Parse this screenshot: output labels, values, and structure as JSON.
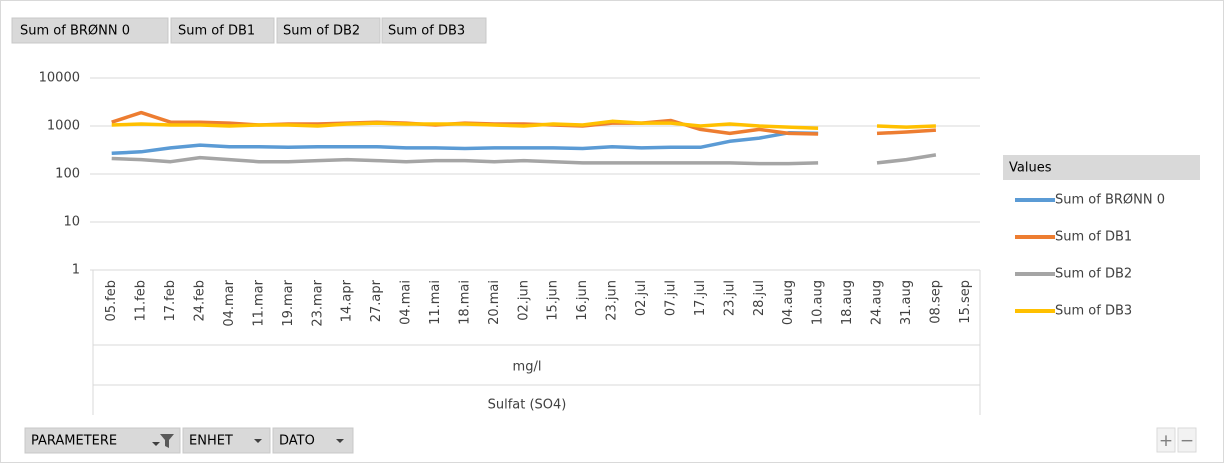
{
  "chart_data": {
    "type": "line",
    "field_buttons": [
      "Sum of BRØNN 0",
      "Sum of DB1",
      "Sum of DB2",
      "Sum of DB3"
    ],
    "axis_field_buttons": [
      "PARAMETERE",
      "ENHET",
      "DATO"
    ],
    "x_group_labels": [
      "mg/l",
      "Sulfat (SO4)"
    ],
    "legend_title": "Values",
    "zoom_buttons": [
      "+",
      "−"
    ],
    "log_scale": true,
    "grid": true,
    "legend": "right",
    "ylim": [
      1,
      10000
    ],
    "yticks": [
      1,
      10,
      100,
      1000,
      10000
    ],
    "categories": [
      "05.feb",
      "11.feb",
      "17.feb",
      "24.feb",
      "04.mar",
      "11.mar",
      "19.mar",
      "23.mar",
      "14.apr",
      "27.apr",
      "04.mai",
      "11.mai",
      "18.mai",
      "20.mai",
      "02.jun",
      "15.jun",
      "16.jun",
      "23.jun",
      "02.jul",
      "07.jul",
      "17.jul",
      "23.jul",
      "28.jul",
      "04.aug",
      "10.aug",
      "18.aug",
      "24.aug",
      "31.aug",
      "08.sep",
      "15.sep"
    ],
    "series": [
      {
        "name": "Sum of BRØNN 0",
        "color": "#5b9bd5",
        "values": [
          270,
          290,
          350,
          400,
          370,
          370,
          360,
          370,
          370,
          370,
          350,
          350,
          340,
          350,
          350,
          350,
          340,
          370,
          350,
          360,
          360,
          480,
          560,
          720,
          700,
          null,
          null,
          null,
          null,
          null
        ]
      },
      {
        "name": "Sum of DB1",
        "color": "#ed7d31",
        "values": [
          1200,
          1900,
          1200,
          1200,
          1150,
          1050,
          1100,
          1100,
          1150,
          1200,
          1150,
          1050,
          1150,
          1100,
          1100,
          1050,
          1000,
          1150,
          1150,
          1300,
          850,
          700,
          850,
          700,
          680,
          null,
          700,
          750,
          820,
          null
        ]
      },
      {
        "name": "Sum of DB2",
        "color": "#a5a5a5",
        "values": [
          210,
          200,
          180,
          220,
          200,
          180,
          180,
          190,
          200,
          190,
          180,
          190,
          190,
          180,
          190,
          180,
          170,
          170,
          170,
          170,
          170,
          170,
          165,
          165,
          170,
          null,
          170,
          200,
          250,
          null
        ]
      },
      {
        "name": "Sum of DB3",
        "color": "#ffc000",
        "values": [
          1050,
          1100,
          1050,
          1050,
          1000,
          1050,
          1050,
          1000,
          1100,
          1150,
          1100,
          1100,
          1100,
          1050,
          1000,
          1100,
          1050,
          1250,
          1150,
          1150,
          1000,
          1100,
          1000,
          950,
          900,
          null,
          1000,
          950,
          1000,
          null
        ]
      }
    ]
  }
}
